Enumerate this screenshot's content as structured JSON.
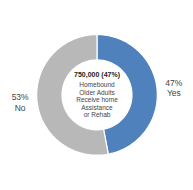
{
  "chart_data": {
    "type": "pie",
    "categories": [
      "Yes",
      "No"
    ],
    "values": [
      47,
      53
    ],
    "colors": [
      "#4f81bd",
      "#b8b8b8"
    ],
    "data_labels": true,
    "value_labels": [
      "47%\nYes",
      "53%\nNo"
    ],
    "annotations": [
      "750,000 (47%)",
      "Homebound\nOlder Adults\nReceive home\nAssistance\nor Rehab"
    ]
  }
}
